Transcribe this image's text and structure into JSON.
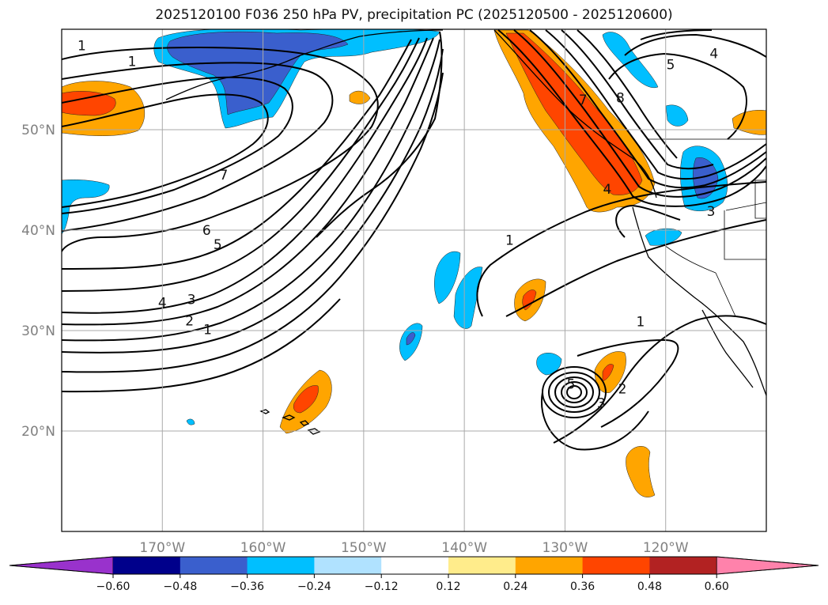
{
  "title": "2025120100 F036 250 hPa PV, precipitation PC (2025120500 - 2025120600)",
  "map": {
    "lon_range": [
      -180,
      -110
    ],
    "lat_range": [
      10,
      60
    ],
    "lat_ticks": [
      {
        "value": 20,
        "label": "20°N"
      },
      {
        "value": 30,
        "label": "30°N"
      },
      {
        "value": 40,
        "label": "40°N"
      },
      {
        "value": 50,
        "label": "50°N"
      }
    ],
    "lon_ticks": [
      {
        "value": -170,
        "label": "170°W"
      },
      {
        "value": -160,
        "label": "160°W"
      },
      {
        "value": -150,
        "label": "150°W"
      },
      {
        "value": -140,
        "label": "140°W"
      },
      {
        "value": -130,
        "label": "130°W"
      },
      {
        "value": -120,
        "label": "120°W"
      }
    ],
    "grid": true,
    "contour_labels": [
      {
        "text": "1",
        "lon": -178,
        "lat": 58.4
      },
      {
        "text": "1",
        "lon": -173,
        "lat": 56.8
      },
      {
        "text": "7",
        "lon": -163.9,
        "lat": 45.5
      },
      {
        "text": "6",
        "lon": -165.6,
        "lat": 40.0
      },
      {
        "text": "5",
        "lon": -164.5,
        "lat": 38.6
      },
      {
        "text": "4",
        "lon": -170,
        "lat": 32.8
      },
      {
        "text": "3",
        "lon": -167.1,
        "lat": 33.1
      },
      {
        "text": "2",
        "lon": -167.3,
        "lat": 31.0
      },
      {
        "text": "1",
        "lon": -165.5,
        "lat": 30.1
      },
      {
        "text": "1",
        "lon": -135.5,
        "lat": 39.0
      },
      {
        "text": "7",
        "lon": -128.2,
        "lat": 53.0
      },
      {
        "text": "8",
        "lon": -124.5,
        "lat": 53.2
      },
      {
        "text": "5",
        "lon": -119.5,
        "lat": 56.5
      },
      {
        "text": "4",
        "lon": -115.2,
        "lat": 57.6
      },
      {
        "text": "4",
        "lon": -125.8,
        "lat": 44.1
      },
      {
        "text": "3",
        "lon": -115.5,
        "lat": 41.9
      },
      {
        "text": "1",
        "lon": -122.5,
        "lat": 30.9
      },
      {
        "text": "5",
        "lon": -129.4,
        "lat": 24.7
      },
      {
        "text": "3",
        "lon": -126.4,
        "lat": 22.8
      },
      {
        "text": "2",
        "lon": -124.3,
        "lat": 24.2
      }
    ]
  },
  "colorbar": {
    "ticks": [
      "−0.60",
      "−0.48",
      "−0.36",
      "−0.24",
      "−0.12",
      "0.12",
      "0.24",
      "0.36",
      "0.48",
      "0.60"
    ],
    "colors": [
      "#9932cc",
      "#00008b",
      "#3a5fcd",
      "#00bfff",
      "#b0e2ff",
      "#ffffff",
      "#ffec8b",
      "#ffa500",
      "#ff4500",
      "#b22222",
      "#ff82ab"
    ]
  },
  "legend_colors": {
    "neg_strong": "#3a5fcd",
    "neg": "#00bfff",
    "pos": "#ffa500",
    "pos_strong": "#ff4500"
  }
}
